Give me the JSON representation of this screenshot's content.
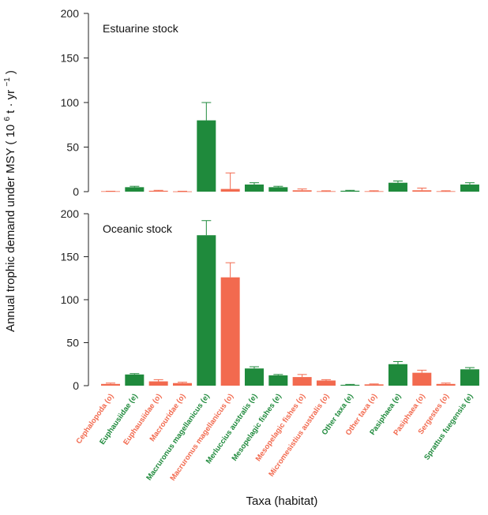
{
  "colors": {
    "estuarine": "#1f8a3c",
    "oceanic": "#f26a4f",
    "axis": "#222222"
  },
  "chart_data": {
    "type": "bar",
    "xlabel": "Taxa (habitat)",
    "ylabel_prefix": "Annual trophic demand under MSY (",
    "ylabel_unit": "10",
    "ylabel_exp": "6",
    "ylabel_mid": " t · yr",
    "ylabel_exp2": "−1",
    "ylabel_suffix": " )",
    "ylim": [
      0,
      200
    ],
    "yticks": [
      "0",
      "50",
      "100",
      "150",
      "200"
    ],
    "categories": [
      {
        "label": "Cephalopoda (o)",
        "habitat": "o"
      },
      {
        "label": "Euphausiidae (e)",
        "habitat": "e"
      },
      {
        "label": "Euphausiidae (o)",
        "habitat": "o"
      },
      {
        "label": "Macrouridae (o)",
        "habitat": "o"
      },
      {
        "label": "Macruronus magellanicus (e)",
        "habitat": "e"
      },
      {
        "label": "Macruronus magellanicus (o)",
        "habitat": "o"
      },
      {
        "label": "Merluccius australis (e)",
        "habitat": "e"
      },
      {
        "label": "Mesopelagic fishes (e)",
        "habitat": "e"
      },
      {
        "label": "Mesopelagic fishes (o)",
        "habitat": "o"
      },
      {
        "label": "Micromesistius australis (o)",
        "habitat": "o"
      },
      {
        "label": "Other taxa (e)",
        "habitat": "e"
      },
      {
        "label": "Other taxa (o)",
        "habitat": "o"
      },
      {
        "label": "Pasiphaea (e)",
        "habitat": "e"
      },
      {
        "label": "Pasiphaea (o)",
        "habitat": "o"
      },
      {
        "label": "Sergestes (o)",
        "habitat": "o"
      },
      {
        "label": "Sprattus fuegensis (e)",
        "habitat": "e"
      }
    ],
    "panels": [
      {
        "title": "Estuarine stock",
        "values": [
          0.5,
          5,
          1,
          0.3,
          80,
          3,
          8,
          5,
          1.5,
          0.5,
          1,
          0.5,
          10,
          1.5,
          0.5,
          8
        ],
        "errors": [
          0.5,
          6,
          1.5,
          0.5,
          100,
          21,
          10,
          6,
          3,
          1,
          1.5,
          1,
          12,
          4,
          1,
          10
        ]
      },
      {
        "title": "Oceanic stock",
        "values": [
          2,
          13,
          5,
          3,
          175,
          126,
          20,
          12,
          10,
          6,
          1,
          1.5,
          25,
          15,
          2,
          19
        ],
        "errors": [
          3,
          14,
          7,
          4,
          192,
          143,
          22,
          13,
          13,
          7,
          1.5,
          2,
          28,
          18,
          3,
          21
        ]
      }
    ]
  }
}
